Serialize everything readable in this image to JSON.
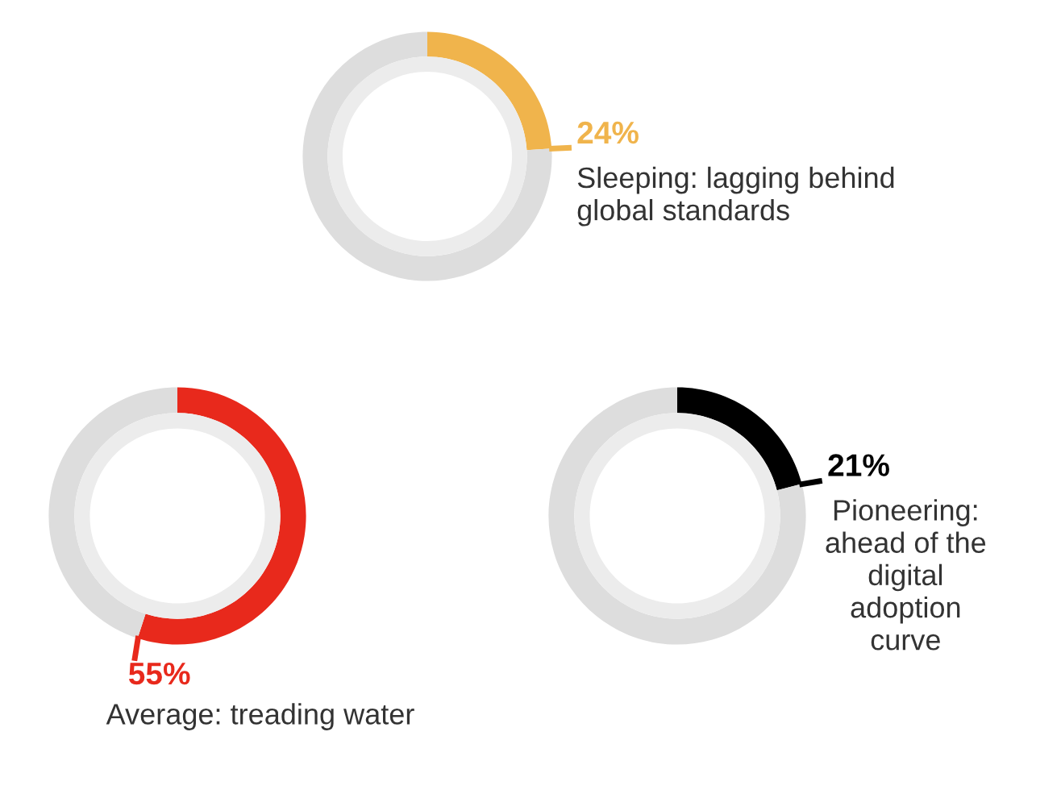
{
  "chart_data": [
    {
      "type": "donut",
      "categories": [
        "Sleeping: lagging behind\nglobal standards",
        null
      ],
      "values": [
        24,
        76
      ],
      "colors": [
        "#f0b44c",
        "#dddddd"
      ],
      "value_labels": [
        "24%",
        null
      ]
    },
    {
      "type": "donut",
      "categories": [
        "Average: treading water",
        null
      ],
      "values": [
        55,
        45
      ],
      "colors": [
        "#e8291c",
        "#dddddd"
      ],
      "value_labels": [
        "55%",
        null
      ]
    },
    {
      "type": "donut",
      "categories": [
        "Pioneering:\nahead of the\ndigital\nadoption\ncurve",
        null
      ],
      "values": [
        21,
        79
      ],
      "colors": [
        "#000000",
        "#dddddd"
      ],
      "value_labels": [
        "21%",
        null
      ]
    }
  ]
}
